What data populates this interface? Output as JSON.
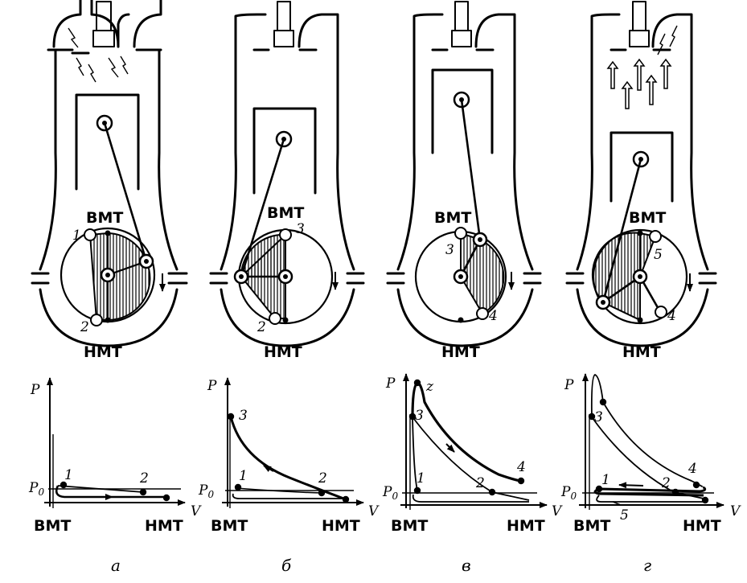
{
  "labels": {
    "tdc": "ВМТ",
    "bdc": "НМТ",
    "p_axis": "P",
    "v_axis": "V",
    "p0": "P",
    "p0_sub": "0"
  },
  "panels": [
    {
      "caption": "а",
      "points": [
        "1",
        "2"
      ]
    },
    {
      "caption": "б",
      "points": [
        "3",
        "2",
        "1"
      ]
    },
    {
      "caption": "в",
      "points": [
        "3",
        "4",
        "z",
        "1",
        "2"
      ]
    },
    {
      "caption": "г",
      "points": [
        "5",
        "4",
        "3",
        "1",
        "2"
      ]
    }
  ]
}
